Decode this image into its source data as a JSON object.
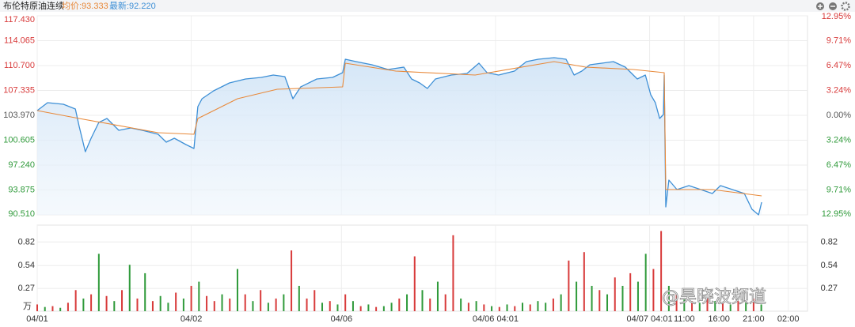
{
  "chart_data": {
    "type": "line",
    "title": "布伦特原油连续",
    "avg_text": "均价:93.333",
    "last_text": "最新:92.220",
    "watermark": "@昊晓波频道",
    "volume_unit": "万",
    "xlim": [
      0,
      200
    ],
    "xticks": [
      {
        "value": 0,
        "label": "04/01"
      },
      {
        "value": 40,
        "label": "04/02"
      },
      {
        "value": 79,
        "label": "04/06"
      },
      {
        "value": 119,
        "label": "04/06 04:01"
      },
      {
        "value": 159,
        "label": "04/07 04:01"
      },
      {
        "value": 168,
        "label": "11:00"
      },
      {
        "value": 177,
        "label": "16:00"
      },
      {
        "value": 186,
        "label": "21:00"
      },
      {
        "value": 195,
        "label": "02:00"
      }
    ],
    "ylim": [
      90.51,
      117.43
    ],
    "yticks": [
      {
        "value": 117.43,
        "label": "117.430"
      },
      {
        "value": 114.065,
        "label": "114.065"
      },
      {
        "value": 110.7,
        "label": "110.700"
      },
      {
        "value": 107.335,
        "label": "107.335"
      },
      {
        "value": 103.97,
        "label": "103.970"
      },
      {
        "value": 100.605,
        "label": "100.605"
      },
      {
        "value": 97.24,
        "label": "97.240"
      },
      {
        "value": 93.875,
        "label": "93.875"
      },
      {
        "value": 90.51,
        "label": "90.510"
      }
    ],
    "y2lim": [
      -12.95,
      12.95
    ],
    "y2ticks": [
      {
        "value": 12.95,
        "label": "12.95%"
      },
      {
        "value": 9.71,
        "label": "9.71%"
      },
      {
        "value": 6.47,
        "label": "6.47%"
      },
      {
        "value": 3.24,
        "label": "3.24%"
      },
      {
        "value": 0,
        "label": "0.00%"
      },
      {
        "value": -3.24,
        "label": "3.24%"
      },
      {
        "value": -6.47,
        "label": "6.47%"
      },
      {
        "value": -9.71,
        "label": "9.71%"
      },
      {
        "value": -12.95,
        "label": "12.95%"
      }
    ],
    "up_color": "#d83a3a",
    "down_color": "#2f9a3a",
    "flat_color": "#555555",
    "grid": true,
    "series": [
      {
        "color": "#3d8fd6",
        "x": [
          0,
          2.7,
          6.8,
          9.9,
          10.9,
          12.5,
          14.0,
          16.0,
          18.1,
          21.2,
          24.3,
          27.3,
          31.4,
          33.5,
          35.6,
          38.6,
          40.7,
          41.7,
          42.8,
          45.8,
          49.9,
          54.1,
          58.2,
          61.3,
          64.3,
          66.4,
          68.4,
          72.6,
          76.7,
          79.3,
          80.0,
          82.8,
          86.9,
          91.1,
          95.2,
          97.2,
          99.3,
          101.3,
          103.4,
          107.5,
          111.6,
          114.7,
          116.8,
          119.8,
          123.9,
          127.0,
          130.1,
          134.2,
          137.3,
          139.4,
          141.4,
          143.5,
          146.6,
          149.6,
          152.7,
          155.8,
          157.9,
          159.3,
          160.5,
          161.6,
          162.6,
          162.8,
          163.2,
          164.0,
          166.1,
          169.2,
          172.3,
          175.3,
          177.4,
          180.5,
          183.6,
          185.6,
          187.3,
          188.1
        ],
        "values": [
          104.61,
          105.68,
          105.47,
          104.82,
          102.47,
          99.05,
          100.87,
          103.01,
          103.54,
          101.94,
          102.26,
          101.94,
          101.41,
          100.34,
          100.87,
          100.02,
          99.48,
          105.14,
          106.21,
          107.28,
          108.35,
          108.88,
          109.1,
          109.42,
          109.2,
          106.21,
          107.82,
          108.88,
          109.1,
          109.74,
          111.55,
          111.23,
          110.81,
          110.17,
          110.49,
          108.88,
          108.35,
          107.6,
          108.88,
          109.42,
          109.63,
          111.02,
          109.74,
          109.42,
          109.95,
          111.23,
          111.55,
          111.77,
          111.55,
          109.42,
          109.95,
          110.81,
          111.02,
          111.23,
          110.49,
          108.88,
          109.42,
          106.75,
          105.68,
          103.54,
          104.08,
          109.42,
          91.58,
          95.21,
          93.93,
          94.46,
          93.93,
          93.39,
          94.46,
          93.93,
          93.39,
          91.26,
          90.51,
          92.22
        ]
      },
      {
        "color": "#e8893a",
        "x": [
          0,
          10.9,
          31.4,
          40.7,
          41.7,
          52.0,
          62.3,
          79.3,
          80.0,
          93.1,
          113.7,
          134.2,
          142.4,
          154.8,
          162.8,
          163.2,
          175.3,
          188.1
        ],
        "values": [
          104.61,
          103.54,
          101.62,
          101.41,
          103.54,
          106.21,
          107.5,
          107.82,
          111.02,
          109.95,
          109.42,
          111.23,
          110.49,
          110.17,
          109.74,
          93.93,
          93.93,
          93.07
        ]
      }
    ],
    "volume": {
      "ylim": [
        0,
        1.02
      ],
      "yticks": [
        0.82,
        0.54,
        0.27
      ],
      "x": [
        0,
        2,
        4,
        6,
        8,
        10,
        12,
        14,
        16,
        18,
        20,
        22,
        24,
        26,
        28,
        30,
        32,
        34,
        36,
        38,
        40,
        42,
        44,
        46,
        48,
        50,
        52,
        54,
        56,
        58,
        60,
        62,
        64,
        66,
        68,
        70,
        72,
        74,
        76,
        78,
        80,
        82,
        84,
        86,
        88,
        90,
        92,
        94,
        96,
        98,
        100,
        102,
        104,
        106,
        108,
        110,
        112,
        114,
        116,
        118,
        120,
        122,
        124,
        126,
        128,
        130,
        132,
        134,
        136,
        138,
        140,
        142,
        144,
        146,
        148,
        150,
        152,
        154,
        156,
        158,
        160,
        162,
        164,
        166,
        168,
        170,
        172,
        174,
        176,
        178,
        180,
        182,
        184,
        186,
        188
      ],
      "values": [
        0.08,
        0.05,
        0.06,
        0.04,
        0.1,
        0.25,
        0.15,
        0.2,
        0.68,
        0.18,
        0.12,
        0.25,
        0.55,
        0.15,
        0.45,
        0.12,
        0.18,
        0.1,
        0.22,
        0.15,
        0.3,
        0.35,
        0.18,
        0.12,
        0.2,
        0.15,
        0.5,
        0.2,
        0.12,
        0.25,
        0.1,
        0.15,
        0.2,
        0.72,
        0.3,
        0.15,
        0.25,
        0.1,
        0.12,
        0.08,
        0.2,
        0.12,
        0.06,
        0.08,
        0.05,
        0.06,
        0.1,
        0.15,
        0.2,
        0.65,
        0.25,
        0.15,
        0.35,
        0.2,
        0.9,
        0.15,
        0.1,
        0.12,
        0.08,
        0.06,
        0.05,
        0.08,
        0.06,
        0.1,
        0.08,
        0.12,
        0.1,
        0.15,
        0.2,
        0.6,
        0.35,
        0.7,
        0.3,
        0.25,
        0.2,
        0.4,
        0.3,
        0.45,
        0.35,
        0.68,
        0.5,
        0.95,
        0.3,
        0.2,
        0.15,
        0.12,
        0.1,
        0.15,
        0.12,
        0.1,
        0.08,
        0.12,
        0.1,
        0.15,
        0.08
      ],
      "up": [
        1,
        0,
        1,
        0,
        1,
        1,
        0,
        1,
        0,
        1,
        0,
        1,
        0,
        1,
        0,
        1,
        0,
        0,
        1,
        0,
        1,
        0,
        1,
        1,
        0,
        1,
        0,
        1,
        0,
        1,
        0,
        1,
        0,
        1,
        0,
        1,
        1,
        0,
        1,
        0,
        1,
        0,
        1,
        0,
        1,
        0,
        0,
        1,
        0,
        1,
        0,
        1,
        0,
        1,
        1,
        0,
        1,
        0,
        1,
        0,
        1,
        0,
        1,
        0,
        1,
        0,
        0,
        1,
        0,
        1,
        0,
        1,
        0,
        1,
        0,
        1,
        0,
        1,
        0,
        0,
        1,
        1,
        0,
        1,
        0,
        1,
        0,
        1,
        0,
        1,
        0,
        1,
        0,
        1,
        0
      ]
    }
  }
}
